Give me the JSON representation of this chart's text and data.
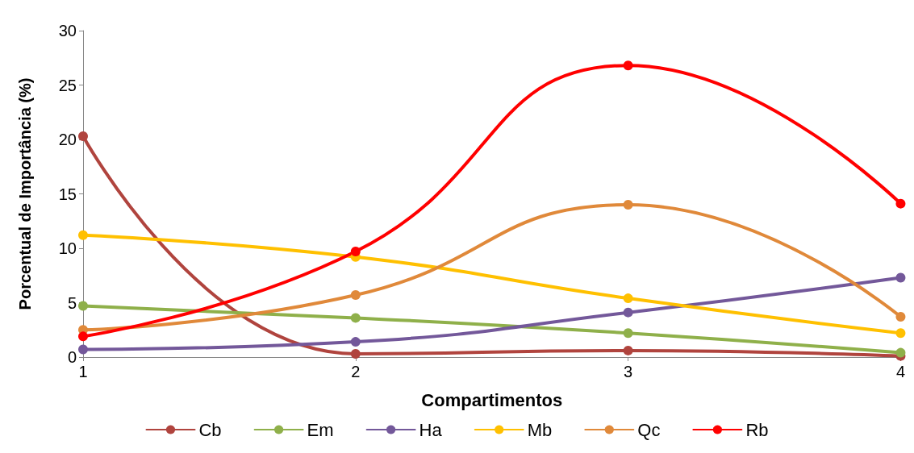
{
  "chart_data": {
    "type": "line",
    "xlabel": "Compartimentos",
    "ylabel": "Porcentual de Importância (%)",
    "x": [
      1,
      2,
      3,
      4
    ],
    "xlim": [
      1,
      4
    ],
    "xticks": [
      1,
      2,
      3,
      4
    ],
    "ylim": [
      0,
      30
    ],
    "yticks": [
      0,
      5,
      10,
      15,
      20,
      25,
      30
    ],
    "grid": false,
    "legend": "bottom",
    "marker": "circle",
    "line_style": "solid",
    "series": [
      {
        "name": "Cb",
        "color": "#b0443e",
        "values": [
          20.3,
          0.3,
          0.6,
          0.1
        ]
      },
      {
        "name": "Em",
        "color": "#8fb04a",
        "values": [
          4.7,
          3.6,
          2.2,
          0.4
        ]
      },
      {
        "name": "Ha",
        "color": "#73589a",
        "values": [
          0.7,
          1.4,
          4.1,
          7.3
        ]
      },
      {
        "name": "Mb",
        "color": "#ffc000",
        "values": [
          11.2,
          9.2,
          5.4,
          2.2
        ]
      },
      {
        "name": "Qc",
        "color": "#e0893a",
        "values": [
          2.5,
          5.7,
          14.0,
          3.7
        ]
      },
      {
        "name": "Rb",
        "color": "#ff0000",
        "values": [
          1.9,
          9.7,
          26.8,
          14.1
        ]
      }
    ]
  }
}
